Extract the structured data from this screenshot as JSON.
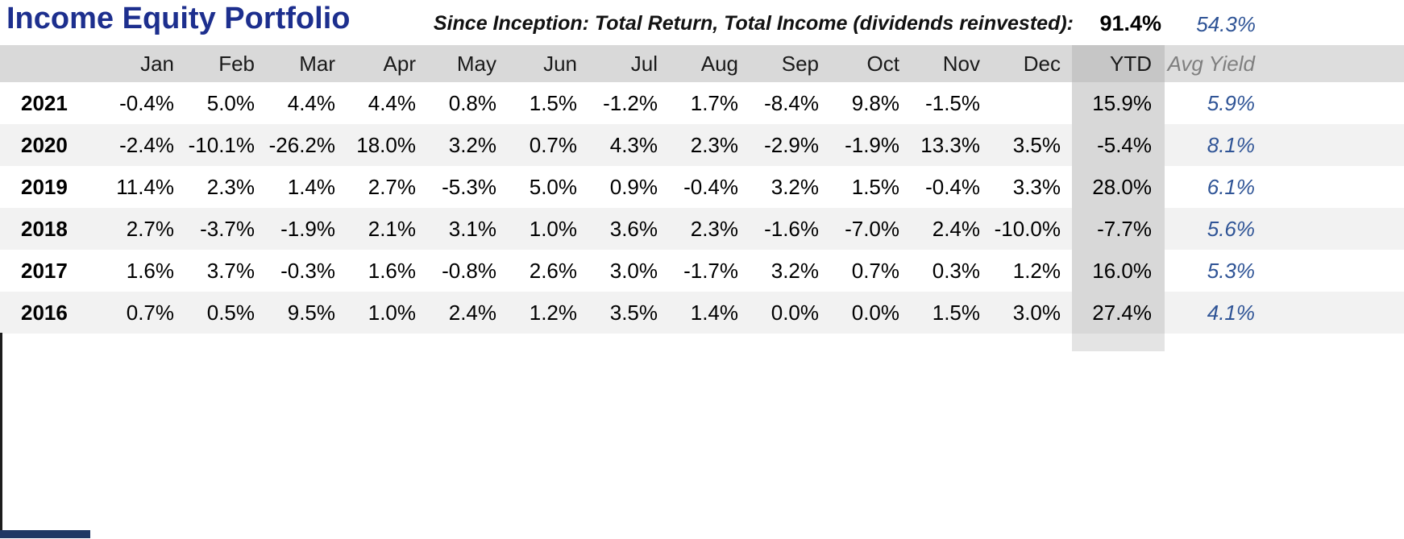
{
  "chart_data": {
    "type": "table",
    "title": "Income Equity Portfolio",
    "since_inception": {
      "label": "Since Inception: Total Return, Total Income (dividends reinvested):",
      "total_return": "91.4%",
      "total_income": "54.3%"
    },
    "columns": [
      "Jan",
      "Feb",
      "Mar",
      "Apr",
      "May",
      "Jun",
      "Jul",
      "Aug",
      "Sep",
      "Oct",
      "Nov",
      "Dec"
    ],
    "ytd_label": "YTD",
    "avg_yield_label": "Avg Yield",
    "rows": [
      {
        "year": "2021",
        "monthly": [
          "-0.4%",
          "5.0%",
          "4.4%",
          "4.4%",
          "0.8%",
          "1.5%",
          "-1.2%",
          "1.7%",
          "-8.4%",
          "9.8%",
          "-1.5%",
          ""
        ],
        "ytd": "15.9%",
        "avg_yield": "5.9%"
      },
      {
        "year": "2020",
        "monthly": [
          "-2.4%",
          "-10.1%",
          "-26.2%",
          "18.0%",
          "3.2%",
          "0.7%",
          "4.3%",
          "2.3%",
          "-2.9%",
          "-1.9%",
          "13.3%",
          "3.5%"
        ],
        "ytd": "-5.4%",
        "avg_yield": "8.1%"
      },
      {
        "year": "2019",
        "monthly": [
          "11.4%",
          "2.3%",
          "1.4%",
          "2.7%",
          "-5.3%",
          "5.0%",
          "0.9%",
          "-0.4%",
          "3.2%",
          "1.5%",
          "-0.4%",
          "3.3%"
        ],
        "ytd": "28.0%",
        "avg_yield": "6.1%"
      },
      {
        "year": "2018",
        "monthly": [
          "2.7%",
          "-3.7%",
          "-1.9%",
          "2.1%",
          "3.1%",
          "1.0%",
          "3.6%",
          "2.3%",
          "-1.6%",
          "-7.0%",
          "2.4%",
          "-10.0%"
        ],
        "ytd": "-7.7%",
        "avg_yield": "5.6%"
      },
      {
        "year": "2017",
        "monthly": [
          "1.6%",
          "3.7%",
          "-0.3%",
          "1.6%",
          "-0.8%",
          "2.6%",
          "3.0%",
          "-1.7%",
          "3.2%",
          "0.7%",
          "0.3%",
          "1.2%"
        ],
        "ytd": "16.0%",
        "avg_yield": "5.3%"
      },
      {
        "year": "2016",
        "monthly": [
          "0.7%",
          "0.5%",
          "9.5%",
          "1.0%",
          "2.4%",
          "1.2%",
          "3.5%",
          "1.4%",
          "0.0%",
          "0.0%",
          "1.5%",
          "3.0%"
        ],
        "ytd": "27.4%",
        "avg_yield": "4.1%"
      }
    ]
  },
  "colors": {
    "title_color": "#1d2f8e",
    "yield_color": "#2F5496",
    "header_bg": "#D9D9D9",
    "ytd_header_bg": "#C6C6C6",
    "ytd_col_bg": "#D8D8D8",
    "yield_header_bg": "#DDDDDD",
    "stripe_bg": "#F2F2F2",
    "muted_header_text": "#7F7F7F",
    "bottom_bar_color": "#1F3864"
  }
}
